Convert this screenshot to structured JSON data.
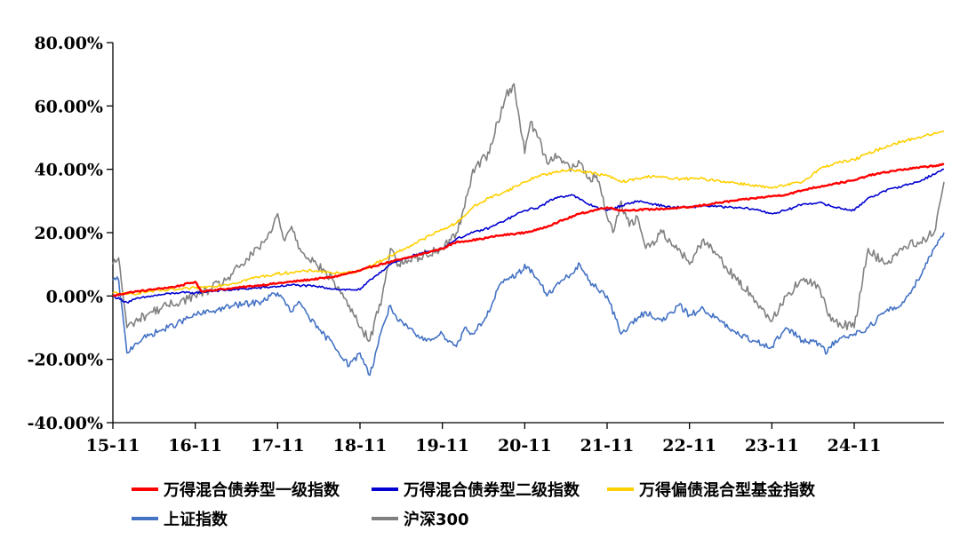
{
  "chart_data": {
    "type": "line",
    "ylim": [
      -40,
      80
    ],
    "yticks": [
      -40,
      -20,
      0,
      20,
      40,
      60,
      80
    ],
    "ytick_labels": [
      "-40.00%",
      "-20.00%",
      "0.00%",
      "20.00%",
      "40.00%",
      "60.00%",
      "80.00%"
    ],
    "xlim": [
      2015.83,
      2025.92
    ],
    "xticks": [
      2015.83,
      2016.83,
      2017.83,
      2018.83,
      2019.83,
      2020.83,
      2021.83,
      2022.83,
      2023.83,
      2024.83
    ],
    "xtick_labels": [
      "15-11",
      "16-11",
      "17-11",
      "18-11",
      "19-11",
      "20-11",
      "21-11",
      "22-11",
      "23-11",
      "24-11"
    ],
    "grid": false,
    "legend_position": "bottom",
    "series": [
      {
        "name": "万得混合债券型一级指数",
        "color": "#ff0000",
        "x": [
          2015.83,
          2016.0,
          2016.3,
          2016.6,
          2016.83,
          2016.9,
          2017.3,
          2017.83,
          2018.0,
          2018.5,
          2018.83,
          2019.0,
          2019.4,
          2019.83,
          2020.0,
          2020.3,
          2020.5,
          2020.83,
          2021.0,
          2021.2,
          2021.5,
          2021.83,
          2022.0,
          2022.5,
          2022.83,
          2023.2,
          2023.5,
          2023.83,
          2024.0,
          2024.3,
          2024.6,
          2024.83,
          2025.0,
          2025.3,
          2025.6,
          2025.92
        ],
        "values": [
          0,
          1,
          2,
          3,
          4.5,
          1.5,
          2.5,
          4,
          4.5,
          6,
          8,
          9.5,
          12,
          15,
          17,
          18,
          19,
          20,
          21,
          23,
          26,
          28,
          27,
          27.5,
          28,
          29.5,
          30.5,
          31.5,
          32,
          34,
          35.5,
          36.5,
          38,
          39.5,
          40.5,
          41.5
        ]
      },
      {
        "name": "万得混合债券型二级指数",
        "color": "#0000d0",
        "x": [
          2015.83,
          2016.0,
          2016.1,
          2016.3,
          2016.6,
          2016.83,
          2017.0,
          2017.3,
          2017.83,
          2018.0,
          2018.3,
          2018.6,
          2018.83,
          2019.0,
          2019.2,
          2019.5,
          2019.83,
          2020.0,
          2020.2,
          2020.4,
          2020.6,
          2020.83,
          2021.0,
          2021.2,
          2021.4,
          2021.6,
          2021.83,
          2022.0,
          2022.2,
          2022.4,
          2022.6,
          2022.83,
          2023.0,
          2023.3,
          2023.6,
          2023.83,
          2024.0,
          2024.2,
          2024.4,
          2024.6,
          2024.83,
          2025.0,
          2025.3,
          2025.6,
          2025.92
        ],
        "values": [
          0,
          -2,
          -1,
          0,
          1,
          1,
          1.5,
          2,
          3,
          3.5,
          3,
          2,
          2,
          6,
          10,
          13,
          15,
          18,
          20,
          21.5,
          24,
          27,
          28,
          31,
          32,
          29,
          27,
          28.5,
          30,
          29,
          28,
          28,
          28.5,
          28,
          27.5,
          26,
          27,
          29,
          29.5,
          28,
          27,
          31,
          34,
          36,
          40
        ]
      },
      {
        "name": "万得偏债混合型基金指数",
        "color": "#ffd000",
        "x": [
          2015.83,
          2016.0,
          2016.3,
          2016.6,
          2016.83,
          2017.0,
          2017.3,
          2017.5,
          2017.83,
          2018.0,
          2018.3,
          2018.6,
          2018.83,
          2019.0,
          2019.3,
          2019.6,
          2019.83,
          2020.0,
          2020.2,
          2020.4,
          2020.6,
          2020.83,
          2021.0,
          2021.2,
          2021.4,
          2021.6,
          2021.83,
          2022.0,
          2022.2,
          2022.4,
          2022.6,
          2022.83,
          2023.0,
          2023.3,
          2023.6,
          2023.83,
          2024.0,
          2024.2,
          2024.4,
          2024.6,
          2024.83,
          2025.0,
          2025.3,
          2025.6,
          2025.92
        ],
        "values": [
          1,
          0.5,
          1.5,
          2,
          2.5,
          3,
          4,
          5.5,
          7,
          7.5,
          8,
          7,
          8,
          10,
          14,
          18,
          21,
          23,
          28,
          31,
          33,
          36,
          38,
          39,
          40,
          39,
          38,
          36,
          37,
          38,
          37,
          37,
          37,
          36,
          35,
          34,
          35,
          36,
          40,
          42,
          43,
          45,
          48,
          50,
          52
        ]
      },
      {
        "name": "上证指数",
        "color": "#4472c4",
        "x": [
          2015.83,
          2015.9,
          2016.0,
          2016.1,
          2016.3,
          2016.5,
          2016.83,
          2017.0,
          2017.3,
          2017.6,
          2017.83,
          2018.0,
          2018.1,
          2018.3,
          2018.5,
          2018.7,
          2018.83,
          2018.95,
          2019.1,
          2019.2,
          2019.3,
          2019.5,
          2019.6,
          2019.83,
          2020.0,
          2020.1,
          2020.2,
          2020.4,
          2020.5,
          2020.6,
          2020.8,
          2020.83,
          2021.0,
          2021.1,
          2021.2,
          2021.4,
          2021.5,
          2021.6,
          2021.83,
          2022.0,
          2022.2,
          2022.3,
          2022.5,
          2022.7,
          2022.83,
          2023.0,
          2023.2,
          2023.4,
          2023.6,
          2023.83,
          2024.0,
          2024.2,
          2024.4,
          2024.5,
          2024.6,
          2024.83,
          2025.0,
          2025.2,
          2025.4,
          2025.6,
          2025.8,
          2025.92
        ],
        "values": [
          5,
          5,
          -18,
          -15,
          -12,
          -10,
          -6,
          -5,
          -3,
          -2,
          1,
          -5,
          -2,
          -10,
          -15,
          -22,
          -18,
          -25,
          -10,
          -3,
          -8,
          -12,
          -14,
          -12,
          -16,
          -10,
          -12,
          -5,
          2,
          5,
          8,
          10,
          5,
          0,
          3,
          7,
          10,
          5,
          0,
          -12,
          -7,
          -5,
          -8,
          -3,
          -6,
          -4,
          -8,
          -12,
          -14,
          -16,
          -10,
          -14,
          -15,
          -18,
          -14,
          -12,
          -10,
          -5,
          -3,
          5,
          15,
          20
        ]
      },
      {
        "name": "沪深300",
        "color": "#808080",
        "x": [
          2015.83,
          2015.9,
          2016.0,
          2016.1,
          2016.3,
          2016.5,
          2016.83,
          2017.0,
          2017.2,
          2017.4,
          2017.6,
          2017.75,
          2017.83,
          2017.9,
          2018.0,
          2018.1,
          2018.3,
          2018.5,
          2018.7,
          2018.83,
          2018.95,
          2019.1,
          2019.2,
          2019.3,
          2019.5,
          2019.6,
          2019.83,
          2020.0,
          2020.1,
          2020.2,
          2020.4,
          2020.5,
          2020.6,
          2020.7,
          2020.8,
          2020.83,
          2020.9,
          2021.0,
          2021.1,
          2021.2,
          2021.4,
          2021.5,
          2021.6,
          2021.7,
          2021.83,
          2021.9,
          2022.0,
          2022.1,
          2022.2,
          2022.3,
          2022.5,
          2022.7,
          2022.83,
          2023.0,
          2023.2,
          2023.4,
          2023.6,
          2023.83,
          2024.0,
          2024.2,
          2024.4,
          2024.5,
          2024.6,
          2024.83,
          2025.0,
          2025.2,
          2025.4,
          2025.6,
          2025.8,
          2025.92
        ],
        "values": [
          10,
          12,
          -10,
          -8,
          -5,
          -3,
          0,
          2,
          5,
          10,
          15,
          20,
          26,
          18,
          22,
          15,
          10,
          5,
          -3,
          -10,
          -14,
          0,
          15,
          10,
          12,
          13,
          15,
          20,
          28,
          40,
          45,
          55,
          63,
          67,
          50,
          45,
          55,
          50,
          42,
          45,
          40,
          42,
          37,
          38,
          25,
          20,
          30,
          22,
          25,
          15,
          20,
          15,
          10,
          18,
          12,
          5,
          0,
          -8,
          0,
          5,
          3,
          -5,
          -8,
          -10,
          15,
          10,
          15,
          17,
          20,
          36
        ]
      }
    ]
  }
}
